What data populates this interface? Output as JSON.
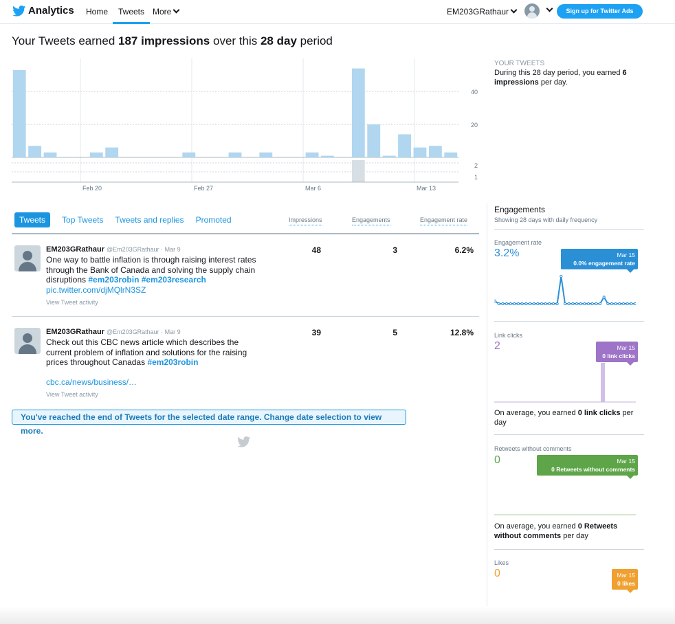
{
  "nav": {
    "brand": "Analytics",
    "home": "Home",
    "tweets": "Tweets",
    "more": "More",
    "account": "EM203GRathaur",
    "ads_button": "Sign up for Twitter Ads"
  },
  "headline": {
    "prefix": "Your Tweets earned ",
    "impressions": "187 impressions",
    "middle": " over this ",
    "period": "28 day",
    "suffix": " period"
  },
  "chart_data": {
    "type": "bar",
    "categories": [
      "Feb 15",
      "Feb 16",
      "Feb 17",
      "Feb 18",
      "Feb 19",
      "Feb 20",
      "Feb 21",
      "Feb 22",
      "Feb 23",
      "Feb 24",
      "Feb 25",
      "Feb 26",
      "Feb 27",
      "Feb 28",
      "Mar 1",
      "Mar 2",
      "Mar 3",
      "Mar 4",
      "Mar 5",
      "Mar 6",
      "Mar 7",
      "Mar 8",
      "Mar 9",
      "Mar 10",
      "Mar 11",
      "Mar 12",
      "Mar 13",
      "Mar 14",
      "Mar 15"
    ],
    "series": [
      {
        "values": [
          53,
          7,
          3,
          0,
          0,
          3,
          6,
          0,
          0,
          0,
          0,
          3,
          0,
          0,
          3,
          0,
          3,
          0,
          0,
          3,
          1,
          0,
          54,
          20,
          1,
          14,
          6,
          7,
          3
        ]
      }
    ],
    "lower_values": [
      0,
      0,
      0,
      0,
      0,
      0,
      0,
      0,
      0,
      0,
      0,
      0,
      0,
      0,
      0,
      0,
      0,
      0,
      0,
      0,
      0,
      0,
      2,
      0,
      0,
      0,
      0,
      0,
      0
    ],
    "x_tick_labels": [
      "Feb 20",
      "Feb 27",
      "Mar 6",
      "Mar 13"
    ],
    "y_tick_labels": [
      "40",
      "20"
    ],
    "lower_y_tick_labels": [
      "2",
      "1"
    ],
    "ylim": [
      0,
      58
    ],
    "color": "#b0d6f0"
  },
  "summary": {
    "heading": "YOUR TWEETS",
    "text1": "During this 28 day period, you earned ",
    "value": "6",
    "unit": "impressions",
    "text2": " per day."
  },
  "tabs": [
    "Tweets",
    "Top Tweets",
    "Tweets and replies",
    "Promoted"
  ],
  "columns": {
    "impressions": "Impressions",
    "engagements": "Engagements",
    "rate": "Engagement rate"
  },
  "tweets": [
    {
      "name": "EM203GRathaur",
      "handle": "@Em203GRathaur",
      "date": "Mar 9",
      "text": "One way to battle inflation is through raising interest rates through the Bank of Canada and solving the supply chain disruptions ",
      "hashtags": "#em203robin #em203research",
      "link": "pic.twitter.com/djMQlrN3SZ",
      "activity": "View Tweet activity",
      "impressions": "48",
      "engagements": "3",
      "rate": "6.2%"
    },
    {
      "name": "EM203GRathaur",
      "handle": "@Em203GRathaur",
      "date": "Mar 9",
      "text": "Check out this CBC news article which describes the current problem of inflation and solutions for the raising prices throughout Canadas ",
      "hashtags": "#em203robin",
      "link": "cbc.ca/news/business/…",
      "activity": "View Tweet activity",
      "impressions": "39",
      "engagements": "5",
      "rate": "12.8%"
    }
  ],
  "end_note": "You've reached the end of Tweets for the selected date range. Change date selection to view more.",
  "engagements": {
    "title": "Engagements",
    "subtitle": "Showing 28 days with daily frequency",
    "rate": {
      "label": "Engagement rate",
      "value": "3.2%",
      "tip_date": "Mar 15",
      "tip_value": "0.0% engagement rate",
      "color": "#2b8fd6",
      "series": [
        0.6,
        0,
        0,
        0,
        0,
        0,
        0,
        0,
        0,
        0,
        0,
        0,
        0,
        0,
        0,
        0,
        0,
        6.2,
        0,
        0,
        0,
        0,
        0,
        0,
        0,
        0,
        0,
        0,
        1.5,
        0,
        0,
        0,
        0,
        0,
        0,
        0,
        0
      ]
    },
    "links": {
      "label": "Link clicks",
      "value": "2",
      "tip_date": "Mar 15",
      "tip_value": "0 link clicks",
      "color": "#9d74c7",
      "avg_pre": "On average, you earned ",
      "avg_bold": "0 link clicks",
      "avg_post": " per day"
    },
    "retweets": {
      "label": "Retweets without comments",
      "value": "0",
      "tip_date": "Mar 15",
      "tip_value": "0 Retweets without comments",
      "color": "#5ea54a",
      "avg_pre": "On average, you earned ",
      "avg_bold": "0 Retweets without comments",
      "avg_post": " per day"
    },
    "likes": {
      "label": "Likes",
      "value": "0",
      "tip_date": "Mar 15",
      "tip_value": "0 likes",
      "color": "#f0a030"
    }
  }
}
